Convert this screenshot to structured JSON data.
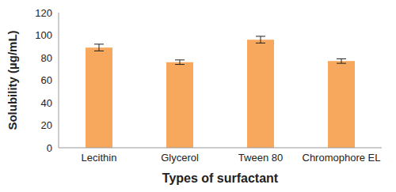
{
  "chart_data": {
    "type": "bar",
    "x_label": "Types of surfactant",
    "y_label": "Solubility (µg/mL)",
    "categories": [
      "Lecithin",
      "Glycerol",
      "Tween 80",
      "Chromophore EL"
    ],
    "values": [
      89,
      76,
      96,
      77
    ],
    "errors": [
      3,
      2,
      3,
      2
    ],
    "color": "#f7a85c",
    "ylim": [
      0,
      120
    ],
    "yticks": [
      0,
      20,
      40,
      60,
      80,
      100,
      120
    ],
    "grid": false
  }
}
